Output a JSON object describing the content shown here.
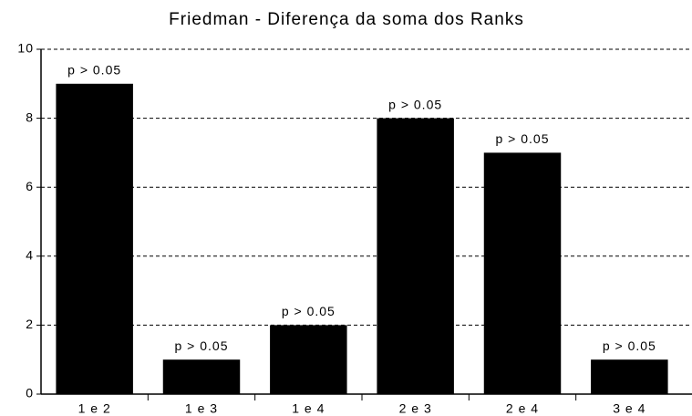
{
  "chart_data": {
    "type": "bar",
    "title": "Friedman - Diferença da soma dos Ranks",
    "categories": [
      "1 e 2",
      "1 e 3",
      "1 e 4",
      "2 e 3",
      "2 e 4",
      "3 e 4"
    ],
    "values": [
      9,
      1,
      2,
      8,
      7,
      1
    ],
    "bar_labels": [
      "p > 0.05",
      "p > 0.05",
      "p > 0.05",
      "p > 0.05",
      "p > 0.05",
      "p > 0.05"
    ],
    "color": "#000000",
    "ylim": [
      0,
      10
    ],
    "yticks": [
      0,
      2,
      4,
      6,
      8,
      10
    ],
    "grid": true
  }
}
